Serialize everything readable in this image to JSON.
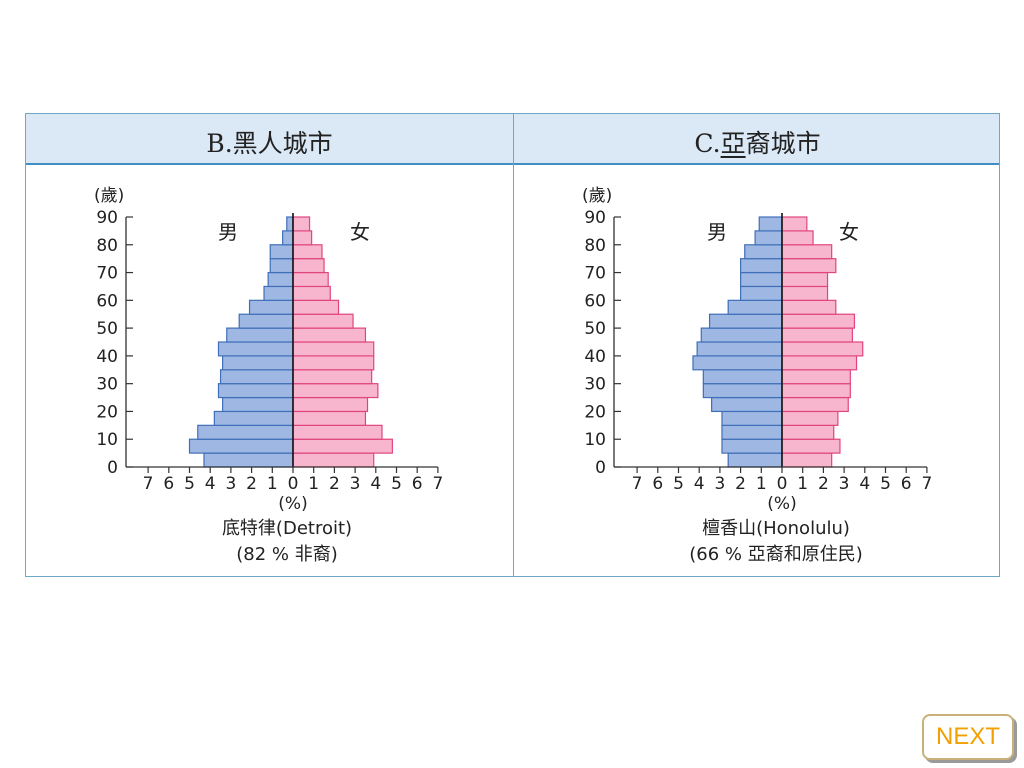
{
  "panels": {
    "b": {
      "title_prefix": "B.",
      "title_text": "黑人城市"
    },
    "c": {
      "title_prefix": "C.",
      "title_underlined": "亞",
      "title_rest": "裔城市"
    }
  },
  "next_button": {
    "label": "NEXT"
  },
  "colors": {
    "male_fill": "#9fb7e3",
    "male_stroke": "#3f6fb8",
    "female_fill": "#f7b6cd",
    "female_stroke": "#e0457e",
    "header_bg": "#dbe8f5",
    "accent": "#f0a000"
  },
  "chart_data": [
    {
      "type": "bar",
      "ylabel": "(歲)",
      "xlabel": "(%)",
      "y_ticks": [
        0,
        10,
        20,
        30,
        40,
        50,
        60,
        70,
        80,
        90
      ],
      "x_ticks_left": [
        7,
        6,
        5,
        4,
        3,
        2,
        1
      ],
      "x_ticks_right": [
        0,
        1,
        2,
        3,
        4,
        5,
        6,
        7
      ],
      "xlim": [
        -7,
        7
      ],
      "ylim": [
        0,
        90
      ],
      "male_label": "男",
      "female_label": "女",
      "caption_line1": "底特律(Detroit)",
      "caption_line2": "(82 % 非裔)",
      "age_groups": [
        "0-4",
        "5-9",
        "10-14",
        "15-19",
        "20-24",
        "25-29",
        "30-34",
        "35-39",
        "40-44",
        "45-49",
        "50-54",
        "55-59",
        "60-64",
        "65-69",
        "70-74",
        "75-79",
        "80-84",
        "85+"
      ],
      "series": [
        {
          "name": "男",
          "values": [
            4.3,
            5.0,
            4.6,
            3.8,
            3.4,
            3.6,
            3.5,
            3.4,
            3.6,
            3.2,
            2.6,
            2.1,
            1.4,
            1.2,
            1.1,
            1.1,
            0.5,
            0.3
          ]
        },
        {
          "name": "女",
          "values": [
            3.9,
            4.8,
            4.3,
            3.5,
            3.6,
            4.1,
            3.8,
            3.9,
            3.9,
            3.5,
            2.9,
            2.2,
            1.8,
            1.7,
            1.5,
            1.4,
            0.9,
            0.8
          ]
        }
      ]
    },
    {
      "type": "bar",
      "ylabel": "(歲)",
      "xlabel": "(%)",
      "y_ticks": [
        0,
        10,
        20,
        30,
        40,
        50,
        60,
        70,
        80,
        90
      ],
      "x_ticks_left": [
        7,
        6,
        5,
        4,
        3,
        2,
        1
      ],
      "x_ticks_right": [
        0,
        1,
        2,
        3,
        4,
        5,
        6,
        7
      ],
      "xlim": [
        -7,
        7
      ],
      "ylim": [
        0,
        90
      ],
      "male_label": "男",
      "female_label": "女",
      "caption_line1": "檀香山(Honolulu)",
      "caption_line2": "(66 % 亞裔和原住民)",
      "age_groups": [
        "0-4",
        "5-9",
        "10-14",
        "15-19",
        "20-24",
        "25-29",
        "30-34",
        "35-39",
        "40-44",
        "45-49",
        "50-54",
        "55-59",
        "60-64",
        "65-69",
        "70-74",
        "75-79",
        "80-84",
        "85+"
      ],
      "series": [
        {
          "name": "男",
          "values": [
            2.6,
            2.9,
            2.9,
            2.9,
            3.4,
            3.8,
            3.8,
            4.3,
            4.1,
            3.9,
            3.5,
            2.6,
            2.0,
            2.0,
            2.0,
            1.8,
            1.3,
            1.1
          ]
        },
        {
          "name": "女",
          "values": [
            2.4,
            2.8,
            2.5,
            2.7,
            3.2,
            3.3,
            3.3,
            3.6,
            3.9,
            3.4,
            3.5,
            2.6,
            2.2,
            2.2,
            2.6,
            2.4,
            1.5,
            1.2
          ]
        }
      ]
    }
  ]
}
